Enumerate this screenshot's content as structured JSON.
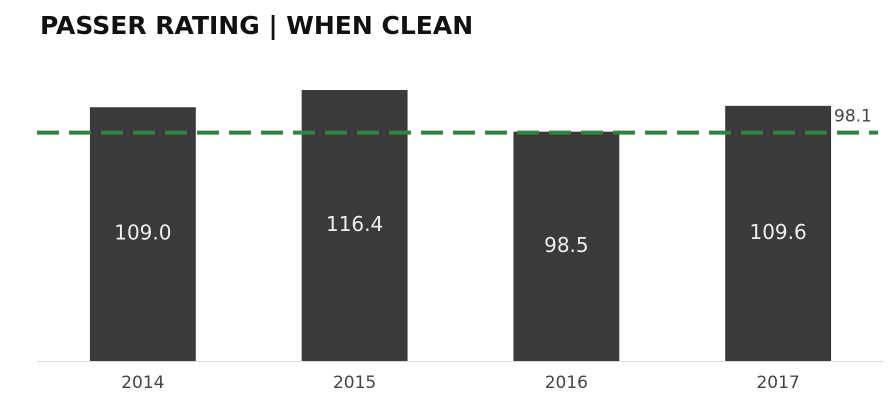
{
  "chart_data": {
    "type": "bar",
    "title": "PASSER RATING | WHEN CLEAN",
    "categories": [
      "2014",
      "2015",
      "2016",
      "2017"
    ],
    "values": [
      109.0,
      116.4,
      98.5,
      109.6
    ],
    "value_labels": [
      "109.0",
      "116.4",
      "98.5",
      "109.6"
    ],
    "color": "#3a3a3a",
    "ylim": [
      0,
      125
    ],
    "reference_line": {
      "value": 98.1,
      "color": "#2e8540"
    }
  }
}
